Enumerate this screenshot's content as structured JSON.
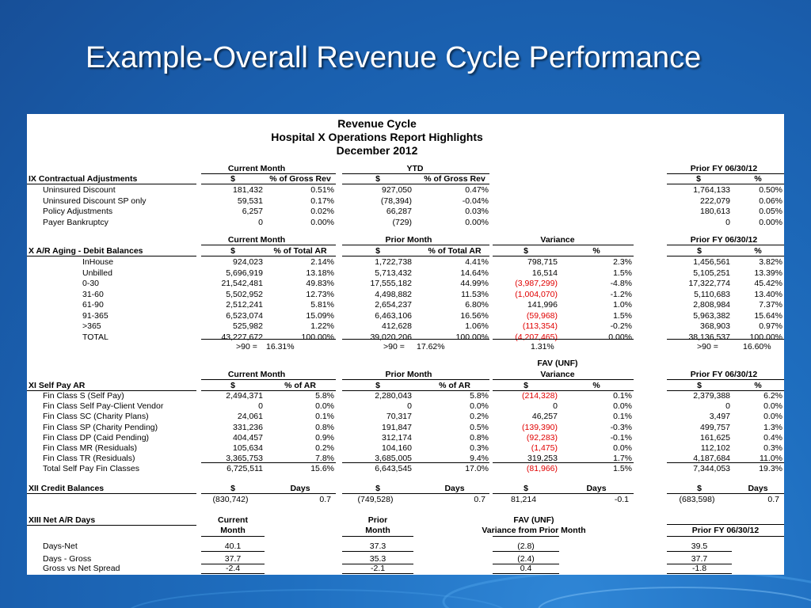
{
  "slide_title": "Example-Overall Revenue Cycle Performance",
  "header": {
    "line1": "Revenue Cycle",
    "line2": "Hospital X Operations Report Highlights",
    "line3": "December 2012"
  },
  "s9": {
    "groups": [
      "Current Month",
      "YTD",
      "Prior FY 06/30/12"
    ],
    "title": "IX  Contractual Adjustments",
    "cols": [
      "$",
      "% of Gross Rev",
      "$",
      "% of Gross Rev",
      "$",
      "%"
    ],
    "rows": [
      {
        "label": "Uninsured Discount",
        "v": [
          "181,432",
          "0.51%",
          "927,050",
          "0.47%",
          "1,764,133",
          "0.50%"
        ]
      },
      {
        "label": "Uninsured Discount SP only",
        "v": [
          "59,531",
          "0.17%",
          "(78,394)",
          "-0.04%",
          "222,079",
          "0.06%"
        ]
      },
      {
        "label": "Policy Adjustments",
        "v": [
          "6,257",
          "0.02%",
          "66,287",
          "0.03%",
          "180,613",
          "0.05%"
        ]
      },
      {
        "label": "Payer Bankruptcy",
        "v": [
          "0",
          "0.00%",
          "(729)",
          "0.00%",
          "0",
          "0.00%"
        ]
      }
    ]
  },
  "s10": {
    "groups": [
      "Current Month",
      "Prior Month",
      "Variance",
      "Prior FY 06/30/12"
    ],
    "title": "X  A/R Aging - Debit Balances",
    "cols": [
      "$",
      "% of Total AR",
      "$",
      "% of Total AR",
      "$",
      "%",
      "$",
      "%"
    ],
    "rows": [
      {
        "label": "InHouse",
        "v": [
          "924,023",
          "2.14%",
          "1,722,738",
          "4.41%",
          "798,715",
          "2.3%",
          "1,456,561",
          "3.82%"
        ]
      },
      {
        "label": "Unbilled",
        "v": [
          "5,696,919",
          "13.18%",
          "5,713,432",
          "14.64%",
          "16,514",
          "1.5%",
          "5,105,251",
          "13.39%"
        ]
      },
      {
        "label": "0-30",
        "v": [
          "21,542,481",
          "49.83%",
          "17,555,182",
          "44.99%",
          "(3,987,299)",
          "-4.8%",
          "17,322,774",
          "45.42%"
        ]
      },
      {
        "label": "31-60",
        "v": [
          "5,502,952",
          "12.73%",
          "4,498,882",
          "11.53%",
          "(1,004,070)",
          "-1.2%",
          "5,110,683",
          "13.40%"
        ]
      },
      {
        "label": "61-90",
        "v": [
          "2,512,241",
          "5.81%",
          "2,654,237",
          "6.80%",
          "141,996",
          "1.0%",
          "2,808,984",
          "7.37%"
        ]
      },
      {
        "label": "91-365",
        "v": [
          "6,523,074",
          "15.09%",
          "6,463,106",
          "16.56%",
          "(59,968)",
          "1.5%",
          "5,963,382",
          "15.64%"
        ]
      },
      {
        "label": ">365",
        "v": [
          "525,982",
          "1.22%",
          "412,628",
          "1.06%",
          "(113,354)",
          "-0.2%",
          "368,903",
          "0.97%"
        ]
      },
      {
        "label": "TOTAL",
        "v": [
          "43,227,672",
          "100.00%",
          "39,020,206",
          "100.00%",
          "(4,207,465)",
          "0.00%",
          "38,136,537",
          "100.00%"
        ]
      }
    ],
    "over90": [
      "16.31%",
      "17.62%",
      "1.31%",
      "16.60%"
    ],
    "over90_label": ">90 ="
  },
  "s11": {
    "fav_label": "FAV (UNF)",
    "groups": [
      "Current Month",
      "Prior Month",
      "Variance",
      "Prior FY 06/30/12"
    ],
    "title": "XI  Self Pay AR",
    "cols": [
      "$",
      "% of AR",
      "$",
      "% of AR",
      "$",
      "%",
      "$",
      "%"
    ],
    "rows": [
      {
        "label": "Fin Class S  (Self Pay)",
        "v": [
          "2,494,371",
          "5.8%",
          "2,280,043",
          "5.8%",
          "(214,328)",
          "0.1%",
          "2,379,388",
          "6.2%"
        ]
      },
      {
        "label": "Fin Class Self Pay-Client Vendor",
        "v": [
          "0",
          "0.0%",
          "0",
          "0.0%",
          "0",
          "0.0%",
          "0",
          "0.0%"
        ]
      },
      {
        "label": "Fin Class SC  (Charity Plans)",
        "v": [
          "24,061",
          "0.1%",
          "70,317",
          "0.2%",
          "46,257",
          "0.1%",
          "3,497",
          "0.0%"
        ]
      },
      {
        "label": "Fin Class SP  (Charity Pending)",
        "v": [
          "331,236",
          "0.8%",
          "191,847",
          "0.5%",
          "(139,390)",
          "-0.3%",
          "499,757",
          "1.3%"
        ]
      },
      {
        "label": "Fin Class DP  (Caid Pending)",
        "v": [
          "404,457",
          "0.9%",
          "312,174",
          "0.8%",
          "(92,283)",
          "-0.1%",
          "161,625",
          "0.4%"
        ]
      },
      {
        "label": "Fin Class MR  (Residuals)",
        "v": [
          "105,634",
          "0.2%",
          "104,160",
          "0.3%",
          "(1,475)",
          "0.0%",
          "112,102",
          "0.3%"
        ]
      },
      {
        "label": "Fin Class TR  (Residuals)",
        "v": [
          "3,365,753",
          "7.8%",
          "3,685,005",
          "9.4%",
          "319,253",
          "1.7%",
          "4,187,684",
          "11.0%"
        ]
      },
      {
        "label": "Total Self Pay Fin Classes",
        "v": [
          "6,725,511",
          "15.6%",
          "6,643,545",
          "17.0%",
          "(81,966)",
          "1.5%",
          "7,344,053",
          "19.3%"
        ]
      }
    ]
  },
  "s12": {
    "title": "XII   Credit Balances",
    "cols": [
      "$",
      "Days",
      "$",
      "Days",
      "$",
      "Days",
      "$",
      "Days"
    ],
    "v": [
      "(830,742)",
      "0.7",
      "(749,528)",
      "0.7",
      "81,214",
      "-0.1",
      "(683,598)",
      "0.7"
    ]
  },
  "s13": {
    "title": "XIII  Net A/R Days",
    "h_current": [
      "Current",
      "Month"
    ],
    "h_prior": [
      "Prior",
      "Month"
    ],
    "h_fav": [
      "FAV (UNF)",
      "Variance from Prior Month"
    ],
    "h_fy": "Prior FY 06/30/12",
    "rows": [
      {
        "label": "Days-Net",
        "v": [
          "40.1",
          "37.3",
          "(2.8)",
          "39.5"
        ]
      },
      {
        "label": "Days - Gross",
        "v": [
          "37.7",
          "35.3",
          "(2.4)",
          "37.7"
        ]
      },
      {
        "label": "Gross vs Net Spread",
        "v": [
          "-2.4",
          "-2.1",
          "0.4",
          "-1.8"
        ]
      }
    ]
  },
  "colors": {
    "negative": "#e00000",
    "background": "#1f6fc0",
    "title": "#ffffff"
  }
}
